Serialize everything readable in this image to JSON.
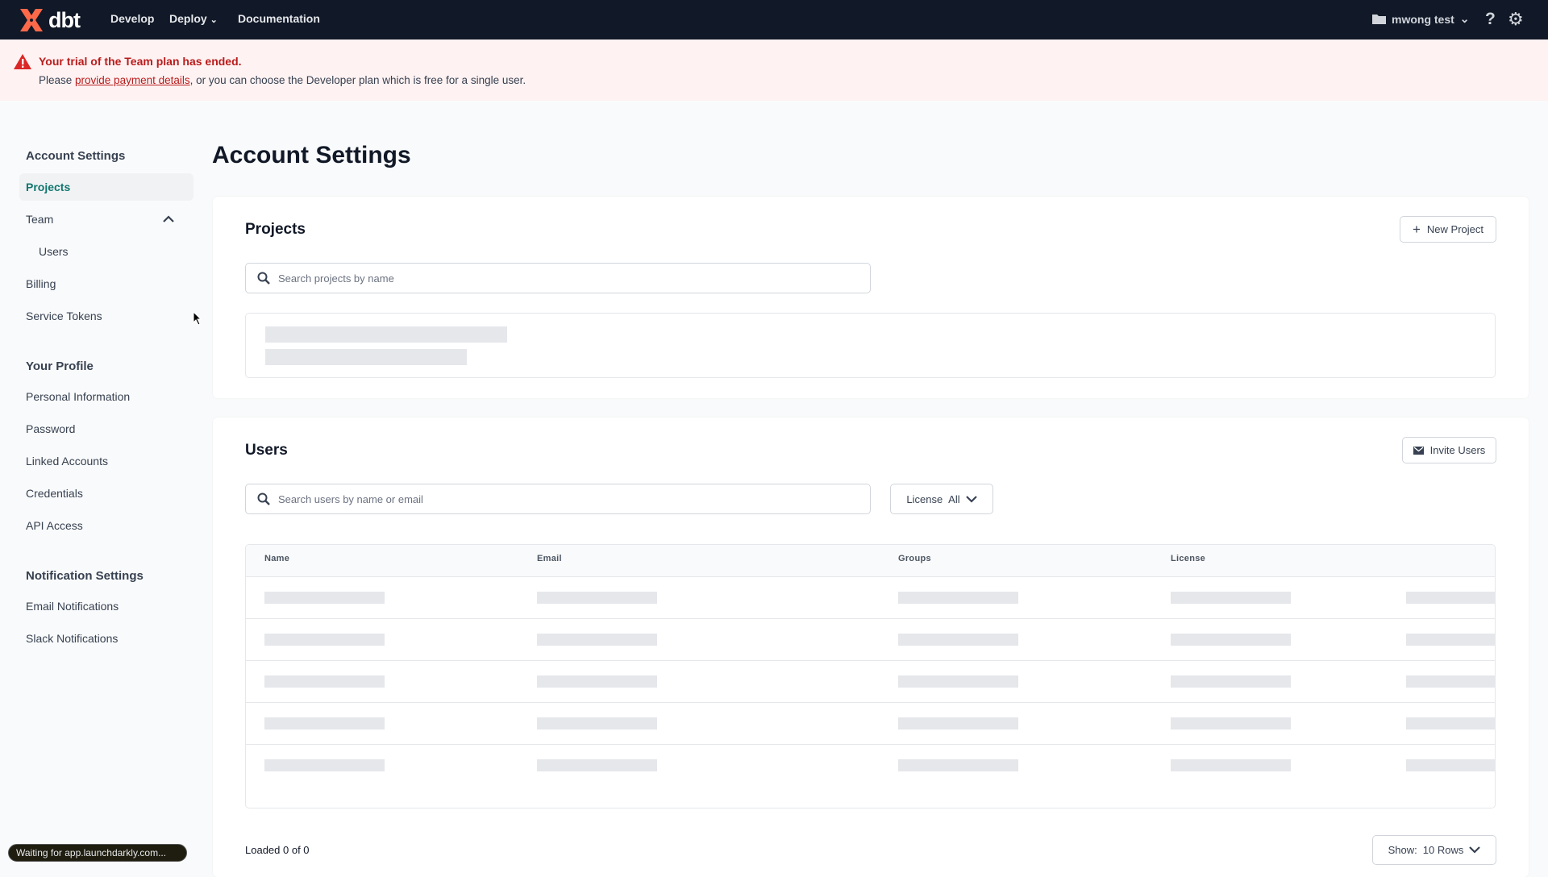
{
  "header": {
    "brand": "dbt",
    "nav": [
      {
        "label": "Develop"
      },
      {
        "label": "Deploy"
      },
      {
        "label": "Documentation"
      }
    ],
    "account": "mwong test"
  },
  "banner": {
    "title": "Your trial of the Team plan has ended.",
    "prefix": "Please ",
    "link": "provide payment details",
    "suffix": ", or you can choose the Developer plan which is free for a single user."
  },
  "sidebar": {
    "account_heading": "Account Settings",
    "projects": "Projects",
    "team": "Team",
    "users": "Users",
    "billing": "Billing",
    "service_tokens": "Service Tokens",
    "profile_heading": "Your Profile",
    "personal": "Personal Information",
    "password": "Password",
    "linked": "Linked Accounts",
    "credentials": "Credentials",
    "api": "API Access",
    "notif_heading": "Notification Settings",
    "email": "Email Notifications",
    "slack": "Slack Notifications"
  },
  "main": {
    "title": "Account Settings",
    "projects": {
      "heading": "Projects",
      "new_button": "New Project",
      "search_placeholder": "Search projects by name"
    },
    "users": {
      "heading": "Users",
      "invite_button": "Invite Users",
      "search_placeholder": "Search users by name or email",
      "license_label": "License",
      "license_value": "All",
      "columns": [
        "Name",
        "Email",
        "Groups",
        "License"
      ],
      "loaded": "Loaded 0 of 0",
      "show_label": "Show:",
      "show_value": "10 Rows"
    }
  },
  "status_bar": "Waiting for app.launchdarkly.com...",
  "colors": {
    "header": "#111827",
    "accent": "#0f766e",
    "banner": "#fef2f2",
    "alert": "#b91c1c",
    "logo": "#ff694a"
  }
}
